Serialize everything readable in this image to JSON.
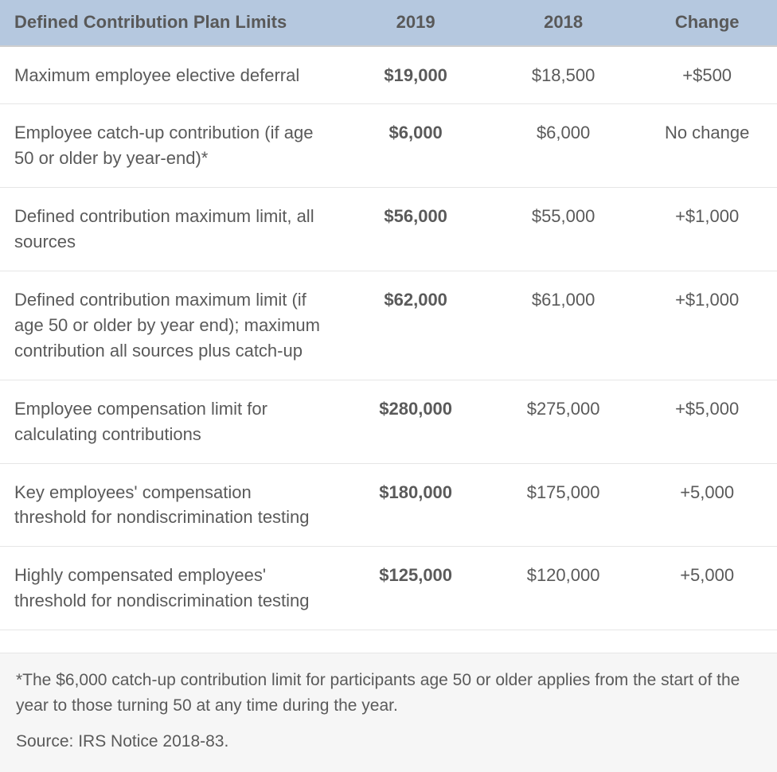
{
  "table": {
    "header_bg": "#b5c8df",
    "header_color": "#595959",
    "body_color": "#5a5a5a",
    "border_color": "#e6e6e6",
    "header_border_color": "#cfcfcf",
    "font_family": "Helvetica Neue, Helvetica, Arial, sans-serif",
    "header_fontsize_pt": 16,
    "body_fontsize_pt": 16,
    "columns": [
      {
        "key": "label",
        "header": "Defined Contribution Plan Limits",
        "width_pct": 44,
        "align": "left",
        "bold_body": false
      },
      {
        "key": "y2019",
        "header": "2019",
        "width_pct": 19,
        "align": "center",
        "bold_body": true
      },
      {
        "key": "y2018",
        "header": "2018",
        "width_pct": 19,
        "align": "center",
        "bold_body": false
      },
      {
        "key": "change",
        "header": "Change",
        "width_pct": 18,
        "align": "center",
        "bold_body": false
      }
    ],
    "rows": [
      {
        "label": "Maximum employee elective deferral",
        "y2019": "$19,000",
        "y2018": "$18,500",
        "change": "+$500"
      },
      {
        "label": "Employee catch-up contribution (if age 50 or older by year-end)*",
        "y2019": "$6,000",
        "y2018": "$6,000",
        "change": "No change"
      },
      {
        "label": "Defined contribution maximum limit, all sources",
        "y2019": "$56,000",
        "y2018": "$55,000",
        "change": "+$1,000"
      },
      {
        "label": "Defined contribution maximum limit (if age 50 or older by year end); maximum contribution all sources plus catch-up",
        "y2019": "$62,000",
        "y2018": "$61,000",
        "change": "+$1,000"
      },
      {
        "label": "Employee compensation limit for calculating contributions",
        "y2019": "$280,000",
        "y2018": "$275,000",
        "change": "+$5,000"
      },
      {
        "label": "Key employees' compensation threshold for nondiscrimination testing",
        "y2019": "$180,000",
        "y2018": "$175,000",
        "change": "+5,000"
      },
      {
        "label": "Highly compensated employees' threshold for nondiscrimination testing",
        "y2019": "$125,000",
        "y2018": "$120,000",
        "change": "+5,000"
      }
    ]
  },
  "footnote": {
    "bg": "#f6f6f6",
    "note": "*The $6,000 catch-up contribution limit for participants age 50 or older applies from the start of the year to those turning 50 at any time during the year.",
    "source": "Source: IRS Notice 2018-83."
  }
}
